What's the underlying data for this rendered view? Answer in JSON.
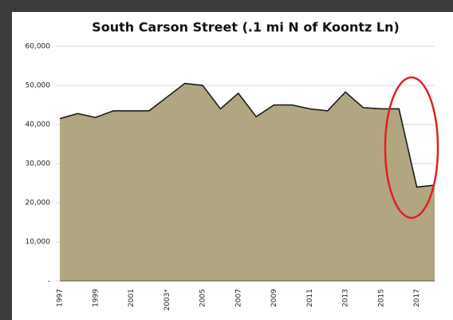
{
  "chart_data": {
    "type": "area",
    "title": "South Carson Street (.1 mi N of Koontz Ln)",
    "categories": [
      "1997",
      null,
      "1999",
      null,
      "2001",
      null,
      "2003*",
      null,
      "2005",
      null,
      "2007",
      null,
      "2009",
      null,
      "2011",
      null,
      "2013",
      null,
      "2015",
      null,
      "2017",
      null
    ],
    "values": [
      41500,
      42800,
      41800,
      43500,
      43500,
      43500,
      47000,
      50500,
      50000,
      44000,
      48000,
      42000,
      45000,
      45000,
      44000,
      43500,
      48300,
      44300,
      44000,
      44000,
      24000,
      24500
    ],
    "color": "#b1a67f",
    "ylim": [
      0,
      60000
    ],
    "yticks": [
      {
        "value": 0,
        "label": "-"
      },
      {
        "value": 10000,
        "label": "10,000"
      },
      {
        "value": 20000,
        "label": "20,000"
      },
      {
        "value": 30000,
        "label": "30,000"
      },
      {
        "value": 40000,
        "label": "40,000"
      },
      {
        "value": 50000,
        "label": "50,000"
      },
      {
        "value": 60000,
        "label": "60,000"
      }
    ],
    "grid": true
  }
}
